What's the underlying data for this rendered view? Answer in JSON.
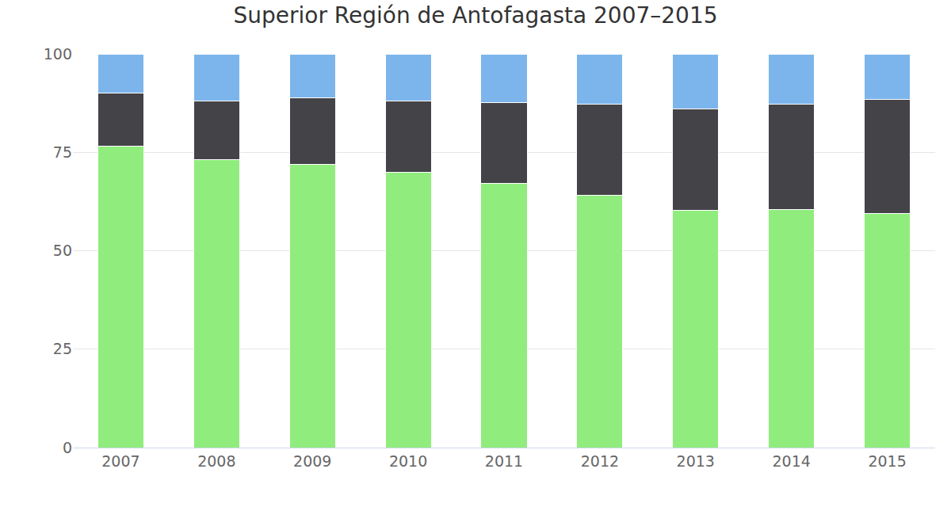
{
  "chart_data": {
    "type": "bar",
    "title": "Superior Región de Antofagasta 2007–2015",
    "categories": [
      "2007",
      "2008",
      "2009",
      "2010",
      "2011",
      "2012",
      "2013",
      "2014",
      "2015"
    ],
    "series": [
      {
        "color": "#90ed7d",
        "values": [
          76.5,
          73.2,
          72.0,
          70.0,
          67.2,
          64.0,
          60.3,
          60.4,
          59.5
        ]
      },
      {
        "color": "#434348",
        "values": [
          13.5,
          14.8,
          16.8,
          18.0,
          20.4,
          23.2,
          25.7,
          26.8,
          29.0
        ]
      },
      {
        "color": "#7cb5ec",
        "values": [
          10.0,
          12.0,
          11.2,
          12.0,
          12.4,
          12.8,
          14.0,
          12.8,
          11.5
        ]
      }
    ],
    "stacked": true,
    "ylim": [
      0,
      100
    ],
    "yticks": [
      0,
      25,
      50,
      75,
      100
    ],
    "grid": true
  }
}
